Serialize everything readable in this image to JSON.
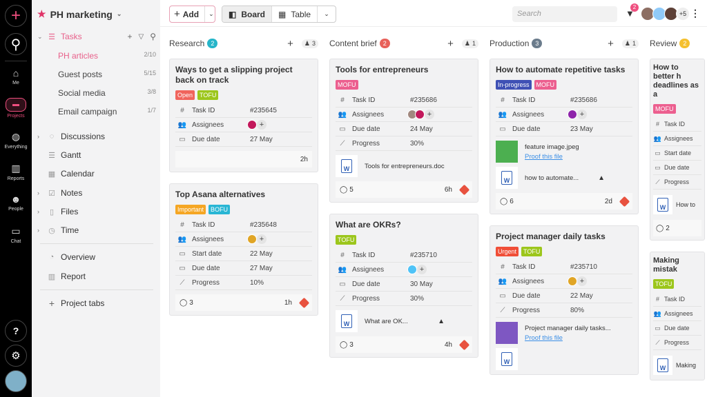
{
  "rail": {
    "items": [
      {
        "label": "Me",
        "icon": "home-icon"
      },
      {
        "label": "Projects",
        "icon": "folder-icon"
      },
      {
        "label": "Everything",
        "icon": "globe-icon"
      },
      {
        "label": "Reports",
        "icon": "bar-chart-icon"
      },
      {
        "label": "People",
        "icon": "people-icon"
      },
      {
        "label": "Chat",
        "icon": "chat-icon"
      }
    ]
  },
  "panel": {
    "project": "PH marketing",
    "tasks_label": "Tasks",
    "task_lists": [
      {
        "label": "PH articles",
        "count": "2/10"
      },
      {
        "label": "Guest posts",
        "count": "5/15"
      },
      {
        "label": "Social media",
        "count": "3/8"
      },
      {
        "label": "Email campaign",
        "count": "1/7"
      }
    ],
    "sections": [
      "Discussions",
      "Gantt",
      "Calendar",
      "Notes",
      "Files",
      "Time"
    ],
    "overview": "Overview",
    "report": "Report",
    "project_tabs": "Project tabs"
  },
  "toolbar": {
    "add": "Add",
    "board": "Board",
    "table": "Table",
    "search_placeholder": "Search",
    "filter_count": "2",
    "more_members": "+5"
  },
  "colors": {
    "accent": "#e84f7c",
    "rail": "#000000"
  },
  "columns": [
    {
      "name": "Research",
      "count": "2",
      "color": "#26b5c9",
      "members": "3",
      "cards": [
        {
          "title": "Ways to get a slipping project back on track",
          "tags": [
            {
              "t": "Open",
              "c": "#f0645c"
            },
            {
              "t": "TOFU",
              "c": "#9cc61c"
            }
          ],
          "fields": [
            {
              "i": "#",
              "l": "Task ID",
              "v": "#235645"
            },
            {
              "i": "👥",
              "l": "Assignees",
              "v": "",
              "av": [
                "#c2185b"
              ]
            },
            {
              "i": "▭",
              "l": "Due date",
              "v": "27 May"
            }
          ],
          "attachments": [],
          "comments": "",
          "time": "2h",
          "priority": false
        },
        {
          "title": "Top Asana alternatives",
          "tags": [
            {
              "t": "Important",
              "c": "#f5a623"
            },
            {
              "t": "BOFU",
              "c": "#29b6d4"
            }
          ],
          "fields": [
            {
              "i": "#",
              "l": "Task ID",
              "v": "#235648"
            },
            {
              "i": "👥",
              "l": "Assignees",
              "v": "",
              "av": [
                "#e0a526"
              ]
            },
            {
              "i": "▭",
              "l": "Start date",
              "v": "22 May"
            },
            {
              "i": "▭",
              "l": "Due date",
              "v": "27 May"
            },
            {
              "i": "⟋",
              "l": "Progress",
              "v": "10%"
            }
          ],
          "attachments": [],
          "comments": "3",
          "time": "1h",
          "priority": true
        }
      ]
    },
    {
      "name": "Content brief",
      "count": "2",
      "color": "#e8615a",
      "members": "1",
      "cards": [
        {
          "title": "Tools for entrepreneurs",
          "tags": [
            {
              "t": "MOFU",
              "c": "#ec5f8f"
            }
          ],
          "fields": [
            {
              "i": "#",
              "l": "Task ID",
              "v": "#235686"
            },
            {
              "i": "👥",
              "l": "Assignees",
              "v": "",
              "av": [
                "#a1887f",
                "#c2185b"
              ]
            },
            {
              "i": "▭",
              "l": "Due date",
              "v": "24 May"
            },
            {
              "i": "⟋",
              "l": "Progress",
              "v": "30%"
            }
          ],
          "attachments": [
            {
              "name": "Tools for entrepreneurs.doc",
              "type": "word"
            }
          ],
          "comments": "5",
          "time": "6h",
          "priority": true
        },
        {
          "title": "What are OKRs?",
          "tags": [
            {
              "t": "TOFU",
              "c": "#9cc61c"
            }
          ],
          "fields": [
            {
              "i": "#",
              "l": "Task ID",
              "v": "#235710"
            },
            {
              "i": "👥",
              "l": "Assignees",
              "v": "",
              "av": [
                "#4fc3f7"
              ]
            },
            {
              "i": "▭",
              "l": "Due date",
              "v": "30 May"
            },
            {
              "i": "⟋",
              "l": "Progress",
              "v": "30%"
            }
          ],
          "attachments": [
            {
              "name": "What are OK...",
              "type": "word",
              "drive": true
            }
          ],
          "comments": "3",
          "time": "4h",
          "priority": true
        }
      ]
    },
    {
      "name": "Production",
      "count": "3",
      "color": "#6b7c8c",
      "members": "1",
      "cards": [
        {
          "title": "How to automate repetitive tasks",
          "tags": [
            {
              "t": "In-progress",
              "c": "#3f51b5"
            },
            {
              "t": "MOFU",
              "c": "#ec5f8f"
            }
          ],
          "fields": [
            {
              "i": "#",
              "l": "Task ID",
              "v": "#235686"
            },
            {
              "i": "👥",
              "l": "Assignees",
              "v": "",
              "av": [
                "#8e24aa"
              ]
            },
            {
              "i": "▭",
              "l": "Due date",
              "v": "23 May"
            }
          ],
          "attachments": [
            {
              "name": "feature image.jpeg",
              "type": "image",
              "link": "Proof this file",
              "color": "#4caf50"
            },
            {
              "name": "how to automate...",
              "type": "word",
              "drive": true
            }
          ],
          "comments": "6",
          "time": "2d",
          "priority": true
        },
        {
          "title": "Project manager daily tasks",
          "tags": [
            {
              "t": "Urgent",
              "c": "#f04e37"
            },
            {
              "t": "TOFU",
              "c": "#9cc61c"
            }
          ],
          "fields": [
            {
              "i": "#",
              "l": "Task ID",
              "v": "#235710"
            },
            {
              "i": "👥",
              "l": "Assignees",
              "v": "",
              "av": [
                "#e0a526"
              ]
            },
            {
              "i": "▭",
              "l": "Due date",
              "v": "22 May"
            },
            {
              "i": "⟋",
              "l": "Progress",
              "v": "80%"
            }
          ],
          "attachments": [
            {
              "name": "Project manager daily tasks...",
              "type": "image",
              "link": "Proof this file",
              "color": "#7e57c2"
            },
            {
              "name": "",
              "type": "word"
            }
          ],
          "comments": "",
          "time": "",
          "priority": false,
          "nofoot": true
        }
      ]
    },
    {
      "name": "Review",
      "count": "2",
      "color": "#f5c02f",
      "members": "",
      "cards": [
        {
          "title": "How to better h deadlines as a",
          "tags": [
            {
              "t": "MOFU",
              "c": "#ec5f8f"
            }
          ],
          "fields": [
            {
              "i": "#",
              "l": "Task ID",
              "v": ""
            },
            {
              "i": "👥",
              "l": "Assignees",
              "v": ""
            },
            {
              "i": "▭",
              "l": "Start date",
              "v": ""
            },
            {
              "i": "▭",
              "l": "Due date",
              "v": ""
            },
            {
              "i": "⟋",
              "l": "Progress",
              "v": ""
            }
          ],
          "attachments": [
            {
              "name": "How to",
              "type": "word"
            }
          ],
          "comments": "2",
          "time": "",
          "priority": false
        },
        {
          "title": "Making mistak",
          "tags": [
            {
              "t": "TOFU",
              "c": "#9cc61c"
            }
          ],
          "fields": [
            {
              "i": "#",
              "l": "Task ID",
              "v": ""
            },
            {
              "i": "👥",
              "l": "Assignees",
              "v": ""
            },
            {
              "i": "▭",
              "l": "Due date",
              "v": ""
            },
            {
              "i": "⟋",
              "l": "Progress",
              "v": ""
            }
          ],
          "attachments": [
            {
              "name": "Making",
              "type": "word"
            }
          ],
          "comments": "",
          "time": "",
          "priority": false,
          "nofoot": true
        }
      ]
    }
  ]
}
